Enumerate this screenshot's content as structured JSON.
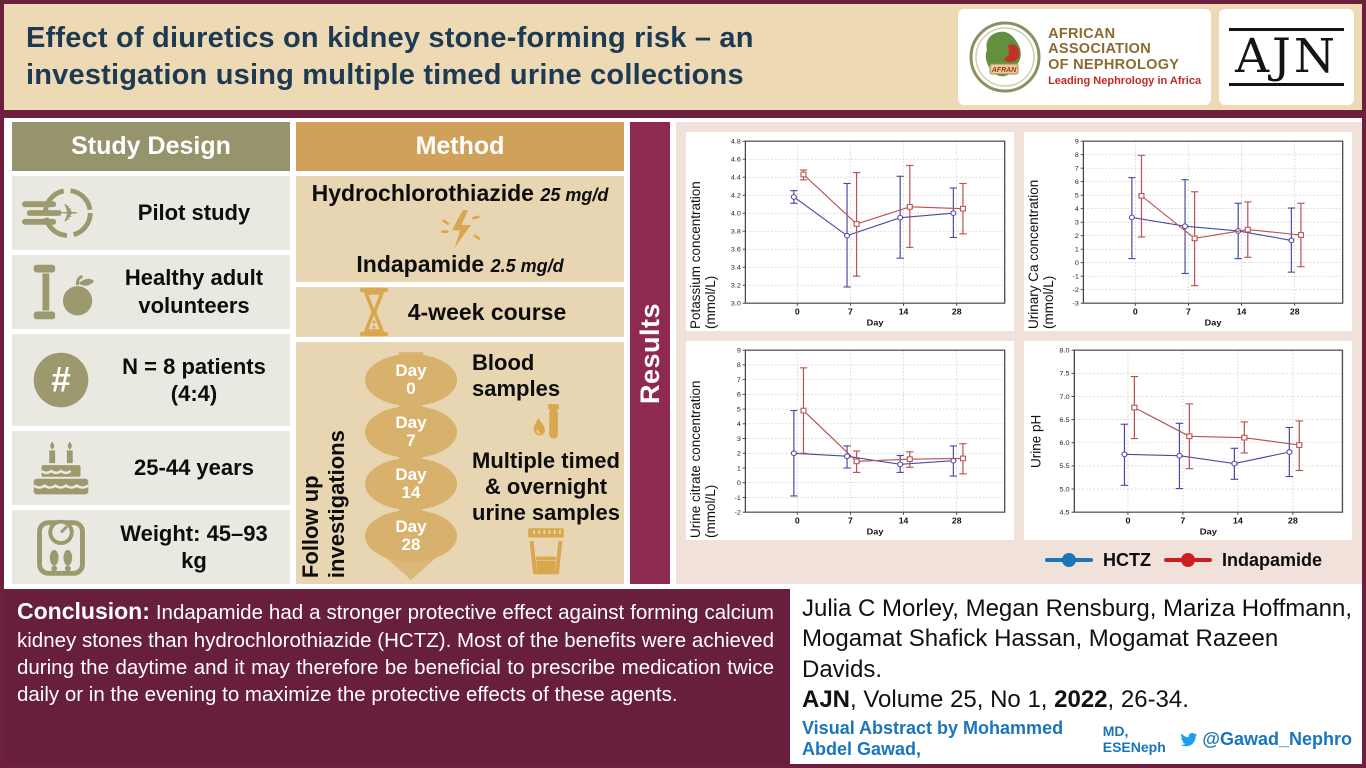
{
  "colors": {
    "maroon_band": "#8e2950",
    "maroon_dark": "#671f3d",
    "maroon_border": "#6e1f3e",
    "cream": "#eed9b5",
    "olive": "#96946c",
    "gold": "#d0a15a",
    "tan": "#e8d6b2",
    "navy": "#1c3a52",
    "link_blue": "#1b75bb"
  },
  "header": {
    "title_line1": "Effect of diuretics on kidney stone-forming risk – an",
    "title_line2": "investigation using multiple timed urine collections",
    "afran": {
      "badge": "AFRAN",
      "org_line1": "AFRICAN",
      "org_line2": "ASSOCIATION",
      "org_line3": "OF NEPHROLOGY",
      "tagline": "Leading Nephrology in Africa"
    },
    "ajn_logo_text": "AJN"
  },
  "study_design": {
    "header": "Study Design",
    "items": [
      {
        "icon": "pilot-plane-icon",
        "text": "Pilot study"
      },
      {
        "icon": "dumbbell-apple-icon",
        "text": "Healthy adult volunteers"
      },
      {
        "icon": "number-hash-icon",
        "text": "N = 8 patients (4:4)"
      },
      {
        "icon": "birthday-cake-icon",
        "text": "25-44 years"
      },
      {
        "icon": "weight-scale-icon",
        "text": "Weight: 45–93 kg"
      }
    ]
  },
  "method": {
    "header": "Method",
    "drug1": "Hydrochlorothiazide",
    "drug1_dose": "25 mg/d",
    "drug2": "Indapamide",
    "drug2_dose": "2.5 mg/d",
    "course": "4-week course",
    "followup": {
      "label": "Follow up investigations",
      "days": [
        {
          "label": "Day",
          "value": "0"
        },
        {
          "label": "Day",
          "value": "7"
        },
        {
          "label": "Day",
          "value": "14"
        },
        {
          "label": "Day",
          "value": "28"
        }
      ],
      "sample1": "Blood samples",
      "sample2_line1": "Multiple timed",
      "sample2_line2": "& overnight",
      "sample2_line3": "urine samples"
    }
  },
  "results_label": "Results",
  "chart_data": [
    {
      "type": "line",
      "title": "",
      "xlabel": "Day",
      "ylabel": "Potassium concentration (mmol/L)",
      "categories": [
        0,
        7,
        14,
        28
      ],
      "ylim": [
        3.0,
        4.8
      ],
      "ystep": 0.2,
      "ydecimals": 1,
      "grid": true,
      "series": [
        {
          "name": "HCTZ",
          "color": "#4a4aa5",
          "marker": "circle",
          "dx": -0.013,
          "values": [
            4.18,
            3.75,
            3.95,
            4.0
          ],
          "err_lo": [
            4.11,
            3.18,
            3.5,
            3.73
          ],
          "err_hi": [
            4.25,
            4.33,
            4.41,
            4.28
          ]
        },
        {
          "name": "Indapamide",
          "color": "#b85151",
          "marker": "square",
          "dx": 0.024,
          "values": [
            4.43,
            3.88,
            4.07,
            4.05
          ],
          "err_lo": [
            4.37,
            3.3,
            3.62,
            3.77
          ],
          "err_hi": [
            4.48,
            4.45,
            4.53,
            4.33
          ]
        }
      ]
    },
    {
      "type": "line",
      "title": "",
      "xlabel": "Day",
      "ylabel": "Urinary Ca concentration (mmol/L)",
      "categories": [
        0,
        7,
        14,
        28
      ],
      "ylim": [
        -3,
        9
      ],
      "ystep": 1,
      "ydecimals": 0,
      "grid": true,
      "series": [
        {
          "name": "HCTZ",
          "color": "#4a4aa5",
          "marker": "circle",
          "dx": -0.013,
          "values": [
            3.35,
            2.7,
            2.35,
            1.65
          ],
          "err_lo": [
            0.3,
            -0.8,
            0.3,
            -0.7
          ],
          "err_hi": [
            6.3,
            6.15,
            4.4,
            4.05
          ]
        },
        {
          "name": "Indapamide",
          "color": "#b85151",
          "marker": "square",
          "dx": 0.024,
          "values": [
            4.95,
            1.8,
            2.45,
            2.05
          ],
          "err_lo": [
            1.9,
            -1.7,
            0.4,
            -0.3
          ],
          "err_hi": [
            7.95,
            5.25,
            4.5,
            4.4
          ]
        }
      ]
    },
    {
      "type": "line",
      "title": "",
      "xlabel": "Day",
      "ylabel": "Urine citrate concentration (mmol/L)",
      "categories": [
        0,
        7,
        14,
        28
      ],
      "ylim": [
        -2,
        9
      ],
      "ystep": 1,
      "ydecimals": 0,
      "grid": true,
      "series": [
        {
          "name": "HCTZ",
          "color": "#4a4aa5",
          "marker": "circle",
          "dx": -0.013,
          "values": [
            2.0,
            1.8,
            1.25,
            1.5
          ],
          "err_lo": [
            -0.9,
            1.0,
            0.7,
            0.45
          ],
          "err_hi": [
            4.9,
            2.5,
            1.85,
            2.5
          ]
        },
        {
          "name": "Indapamide",
          "color": "#b85151",
          "marker": "square",
          "dx": 0.024,
          "values": [
            4.9,
            1.45,
            1.6,
            1.65
          ],
          "err_lo": [
            2.0,
            0.7,
            1.05,
            0.6
          ],
          "err_hi": [
            7.8,
            2.15,
            2.1,
            2.65
          ]
        }
      ]
    },
    {
      "type": "line",
      "title": "",
      "xlabel": "Day",
      "ylabel": "Urine pH",
      "categories": [
        0,
        7,
        14,
        28
      ],
      "ylim": [
        4.5,
        8.0
      ],
      "ystep": 0.5,
      "ydecimals": 1,
      "grid": true,
      "series": [
        {
          "name": "HCTZ",
          "color": "#4a4aa5",
          "marker": "circle",
          "dx": -0.013,
          "values": [
            5.75,
            5.72,
            5.55,
            5.8
          ],
          "err_lo": [
            5.08,
            5.01,
            5.21,
            5.27
          ],
          "err_hi": [
            6.4,
            6.42,
            5.88,
            6.33
          ]
        },
        {
          "name": "Indapamide",
          "color": "#b85151",
          "marker": "square",
          "dx": 0.024,
          "values": [
            6.76,
            6.14,
            6.11,
            5.95
          ],
          "err_lo": [
            6.09,
            5.44,
            5.78,
            5.4
          ],
          "err_hi": [
            7.43,
            6.84,
            6.45,
            6.47
          ]
        }
      ]
    }
  ],
  "legend": [
    {
      "label": "HCTZ",
      "color": "#1b75bb"
    },
    {
      "label": "Indapamide",
      "color": "#cc1f1f"
    }
  ],
  "conclusion": {
    "heading": "Conclusion:",
    "body": " Indapamide had a stronger protective effect against forming calcium kidney stones than hydrochlorothiazide (HCTZ). Most of the benefits were achieved during the daytime and it may therefore be beneficial to prescribe medication twice daily or in the evening to maximize the protective effects of these agents."
  },
  "credits": {
    "authors_line1": "Julia C Morley, Megan Rensburg, Mariza Hoffmann,",
    "authors_line2": "Mogamat Shafick Hassan, Mogamat Razeen Davids.",
    "cite_journal": "AJN",
    "cite_mid": ", Volume 25, No 1, ",
    "cite_year": "2022",
    "cite_pages": ", 26-34.",
    "va_prefix": "Visual Abstract by Mohammed Abdel Gawad, ",
    "va_small": "MD, ESENeph",
    "va_handle": "@Gawad_Nephro"
  }
}
